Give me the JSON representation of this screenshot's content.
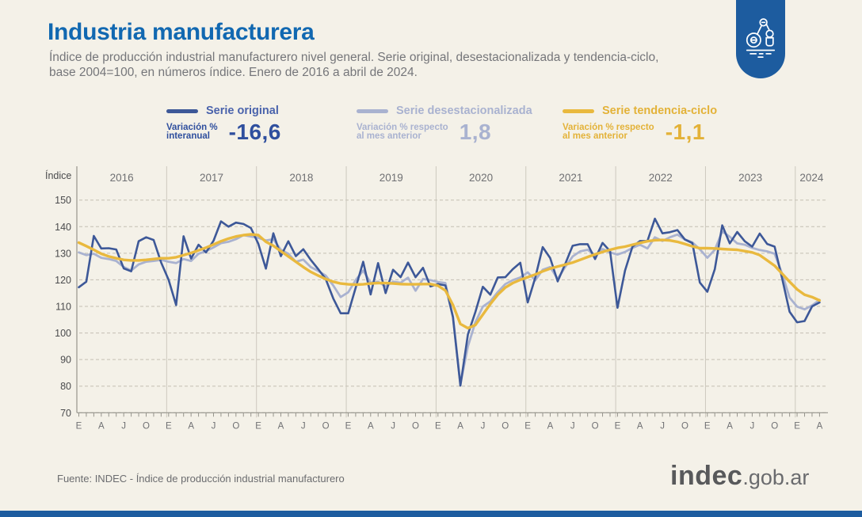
{
  "page": {
    "background": "#f4f1e8",
    "bottom_bar_color": "#1d5c9f"
  },
  "header": {
    "title": "Industria manufacturera",
    "subtitle_line1": "Índice de producción industrial manufacturero nivel general. Serie original, desestacionalizada y tendencia-ciclo,",
    "subtitle_line2": "base 2004=100, en números índice. Enero de 2016 a abril de 2024.",
    "logo_badge_color": "#1d5c9f",
    "logo_icon": "robot-arm-icon"
  },
  "legend": [
    {
      "label": "Serie original",
      "color": "#3d5898",
      "text_color": "#4a63ac",
      "stat_caption_line1": "Variación %",
      "stat_caption_line2": "interanual",
      "value": "-16,6",
      "value_color": "#2f4f9e"
    },
    {
      "label": "Serie desestacionalizada",
      "color": "#a9b2d0",
      "text_color": "#a9b2d0",
      "stat_caption_line1": "Variación % respecto",
      "stat_caption_line2": "al mes anterior",
      "value": "1,8",
      "value_color": "#a9b2d0"
    },
    {
      "label": "Serie tendencia-ciclo",
      "color": "#e9b93e",
      "text_color": "#e3b238",
      "stat_caption_line1": "Variación % respecto",
      "stat_caption_line2": "al mes anterior",
      "value": "-1,1",
      "value_color": "#e3b238"
    }
  ],
  "chart_data": {
    "type": "line",
    "title": "Índice de producción industrial manufacturero nivel general",
    "ylabel": "Índice",
    "ylim": [
      70,
      150
    ],
    "yticks": [
      150,
      140,
      130,
      120,
      110,
      100,
      90,
      80,
      70
    ],
    "grid": "horizontal-dashed",
    "legend_position": "top",
    "x_start": "2016-01",
    "x_end": "2024-04",
    "years": [
      "2016",
      "2017",
      "2018",
      "2019",
      "2020",
      "2021",
      "2022",
      "2023",
      "2024"
    ],
    "month_letter_by_offset": [
      "E",
      "",
      "",
      "A",
      "",
      "",
      "J",
      "",
      "",
      "O",
      "",
      ""
    ],
    "series": [
      {
        "name": "Serie original",
        "color": "#3d5898",
        "width": 2.6,
        "values": [
          117.2,
          119.3,
          136.5,
          131.8,
          131.9,
          131.4,
          124.3,
          123.2,
          134.5,
          136,
          135,
          126.5,
          120,
          110.5,
          136.4,
          128,
          133.2,
          130.3,
          134.7,
          142,
          140,
          141.5,
          141,
          139.5,
          133.5,
          124.2,
          137.5,
          128.9,
          134.5,
          128.9,
          131.5,
          127.5,
          124,
          120.3,
          113,
          107.4,
          107.4,
          117,
          126.8,
          114.5,
          126.3,
          115,
          123.8,
          121,
          126.5,
          121,
          124.5,
          117.5,
          118.4,
          117.9,
          106,
          80.2,
          99.5,
          107.9,
          117.4,
          114.4,
          120.9,
          121,
          124,
          126.4,
          111.5,
          120.8,
          132.3,
          128.2,
          119.4,
          125.9,
          132.8,
          133.4,
          133.4,
          127.8,
          133.9,
          130.8,
          109.5,
          123.5,
          132.5,
          134.6,
          134.6,
          143,
          137.5,
          137.9,
          138.7,
          135.2,
          133.8,
          119,
          115.5,
          124,
          140.5,
          133.7,
          138,
          134.5,
          132.5,
          137.4,
          133.5,
          132.5,
          120.5,
          108,
          104,
          104.5,
          110,
          111.5
        ]
      },
      {
        "name": "Serie desestacionalizada",
        "color": "#a9b2d0",
        "width": 2.8,
        "values": [
          130.3,
          129.3,
          129.8,
          128.3,
          127.8,
          127.1,
          124.8,
          123.5,
          125.8,
          126.8,
          127.1,
          127.5,
          126.8,
          126.3,
          127.8,
          127.1,
          129.8,
          130.8,
          132.2,
          133.8,
          134.3,
          135.3,
          136.8,
          136.3,
          135.8,
          134.8,
          135.3,
          131.3,
          129.8,
          126.8,
          127.6,
          124.8,
          123.3,
          121.6,
          117.9,
          113.5,
          115.3,
          119.9,
          123.5,
          118.9,
          119.3,
          117.5,
          119.3,
          118.9,
          120.8,
          115.9,
          120.3,
          119.9,
          119.2,
          118.8,
          106,
          80.7,
          95,
          104,
          109.9,
          111.9,
          115.4,
          118.4,
          119.9,
          120.9,
          122.8,
          119.8,
          123.8,
          124.8,
          120.3,
          124.8,
          128.8,
          130.7,
          131.3,
          129.3,
          131.6,
          130.3,
          129.5,
          130.5,
          132,
          133.2,
          131.8,
          136,
          134.6,
          136,
          137,
          135.2,
          134.1,
          131.5,
          128.3,
          131.3,
          138.2,
          136.2,
          133.7,
          133.2,
          132,
          131.2,
          130.7,
          129.8,
          122.3,
          113.3,
          109.9,
          108.9,
          110.4,
          112.4
        ]
      },
      {
        "name": "Serie tendencia-ciclo",
        "color": "#e9b93e",
        "width": 3.4,
        "values": [
          134,
          132.7,
          131.3,
          129.8,
          128.8,
          128.1,
          127.5,
          127.3,
          127.3,
          127.5,
          127.8,
          128.1,
          128.1,
          128.5,
          129.3,
          130.1,
          131.1,
          132.1,
          133.3,
          134.5,
          135.5,
          136.3,
          136.8,
          137.1,
          136.8,
          134.3,
          132.8,
          130.8,
          128.8,
          126.8,
          124.8,
          123,
          121.6,
          120.3,
          119.3,
          118.6,
          118.3,
          118.2,
          118.3,
          118.6,
          118.8,
          118.8,
          118.6,
          118.4,
          118.3,
          118.3,
          118.4,
          118.4,
          117.8,
          116,
          110.5,
          103.4,
          101.8,
          103,
          106.9,
          110.9,
          114.4,
          117.1,
          118.8,
          120,
          121,
          122,
          123.2,
          124.2,
          125,
          125.7,
          126.5,
          127.5,
          128.6,
          129.6,
          130.5,
          131.3,
          132,
          132.5,
          133.2,
          133.9,
          134.5,
          134.9,
          135,
          134.8,
          134.3,
          133.5,
          132.6,
          131.9,
          131.9,
          131.8,
          131.6,
          131.4,
          131.3,
          130.8,
          130.3,
          129.3,
          127.3,
          125.3,
          122.3,
          119.3,
          116.4,
          114.4,
          113.5,
          112.25
        ]
      }
    ]
  },
  "footer": {
    "source": "Fuente: INDEC - Índice de producción industrial manufacturero",
    "brand_bold": "indec",
    "brand_light": ".gob.ar"
  }
}
